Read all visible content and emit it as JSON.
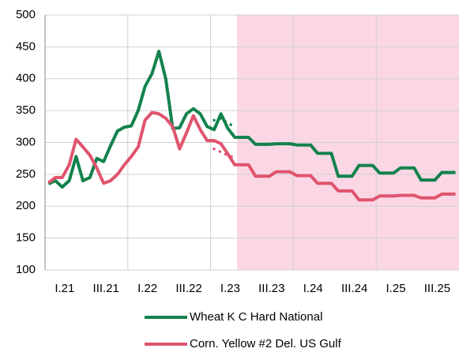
{
  "chart_data": {
    "type": "line",
    "categories": [
      null,
      null,
      "I.21",
      null,
      null,
      null,
      null,
      null,
      "III.21",
      null,
      null,
      null,
      null,
      null,
      "I.22",
      null,
      null,
      null,
      null,
      null,
      "III.22",
      null,
      null,
      null,
      null,
      null,
      "I.23",
      null,
      null,
      null,
      null,
      null,
      "III.23",
      null,
      null,
      null,
      null,
      null,
      "I.24",
      null,
      null,
      null,
      null,
      null,
      "III.24",
      null,
      null,
      null,
      null,
      null,
      "I.25",
      null,
      null,
      null,
      null,
      null,
      "III.25",
      null,
      null,
      null
    ],
    "series": [
      {
        "name": "Wheat K C Hard National",
        "color": "#13824d",
        "values": [
          235,
          240,
          230,
          240,
          278,
          240,
          245,
          275,
          270,
          295,
          318,
          324,
          326,
          350,
          388,
          408,
          443,
          400,
          322,
          323,
          345,
          353,
          345,
          325,
          320,
          345,
          322,
          308,
          308,
          308,
          297,
          297,
          297,
          298,
          298,
          298,
          296,
          296,
          296,
          283,
          283,
          283,
          247,
          247,
          247,
          264,
          264,
          264,
          252,
          252,
          252,
          260,
          260,
          260,
          241,
          241,
          241,
          253,
          253,
          253
        ]
      },
      {
        "name": "Corn. Yellow #2 Del. US Gulf",
        "color": "#e0546e",
        "values": [
          237,
          245,
          245,
          265,
          305,
          293,
          280,
          260,
          236,
          240,
          250,
          265,
          278,
          293,
          335,
          347,
          345,
          338,
          325,
          290,
          315,
          342,
          320,
          303,
          303,
          298,
          282,
          265,
          265,
          265,
          247,
          247,
          247,
          254,
          254,
          254,
          248,
          248,
          248,
          236,
          236,
          236,
          224,
          224,
          224,
          210,
          210,
          210,
          216,
          216,
          216,
          217,
          217,
          217,
          213,
          213,
          213,
          219,
          219,
          219
        ]
      },
      {
        "color": "#13824d",
        "dotted": true,
        "values": [
          null,
          null,
          null,
          null,
          null,
          null,
          null,
          null,
          null,
          null,
          null,
          null,
          null,
          null,
          null,
          null,
          null,
          null,
          null,
          null,
          null,
          null,
          null,
          null,
          335,
          338,
          330,
          325,
          null,
          null,
          null,
          null,
          null,
          null,
          null,
          null,
          null,
          null,
          null,
          null,
          null,
          null,
          null,
          null,
          null,
          null,
          null,
          null,
          null,
          null,
          null,
          null,
          null,
          null,
          null,
          null,
          null,
          null,
          null,
          null
        ]
      },
      {
        "color": "#e0546e",
        "dotted": true,
        "values": [
          null,
          null,
          null,
          null,
          null,
          null,
          null,
          null,
          null,
          null,
          null,
          null,
          null,
          null,
          null,
          null,
          null,
          null,
          null,
          null,
          null,
          null,
          null,
          null,
          290,
          285,
          280,
          276,
          null,
          null,
          null,
          null,
          null,
          null,
          null,
          null,
          null,
          null,
          null,
          null,
          null,
          null,
          null,
          null,
          null,
          null,
          null,
          null,
          null,
          null,
          null,
          null,
          null,
          null,
          null,
          null,
          null,
          null,
          null,
          null
        ]
      }
    ],
    "ylim": [
      100,
      500
    ],
    "yticks": [
      100,
      150,
      200,
      250,
      300,
      350,
      400,
      450,
      500
    ],
    "grid": true
  }
}
